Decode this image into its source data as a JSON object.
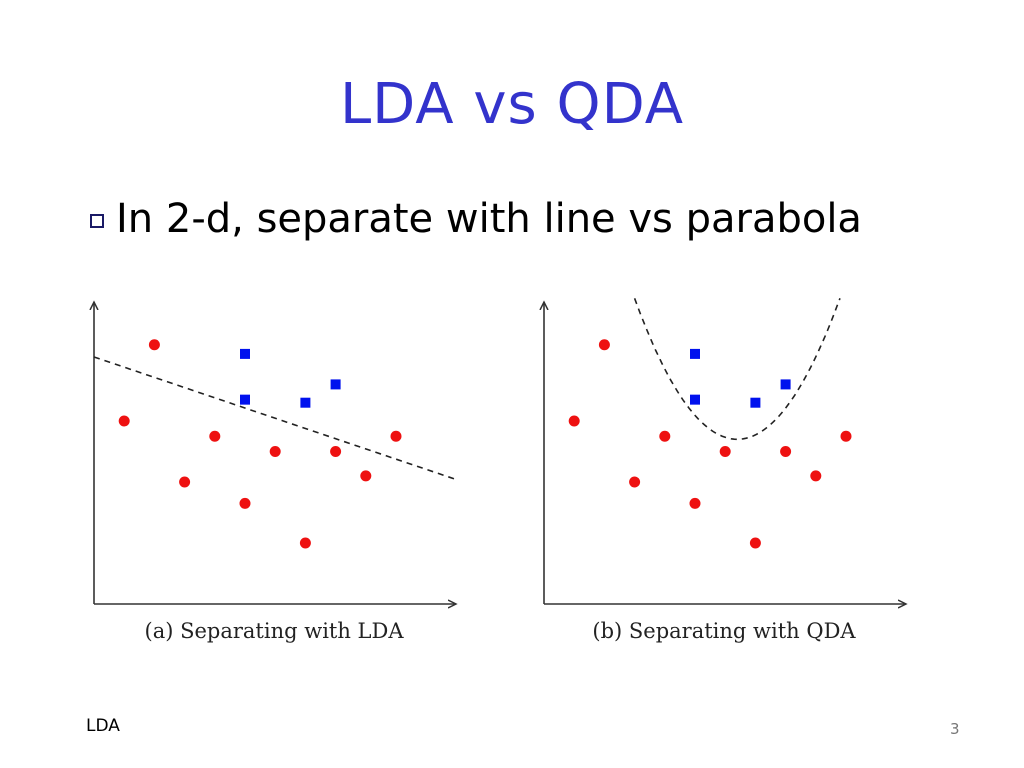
{
  "slide": {
    "title": "LDA vs QDA",
    "bullet": "In 2-d, separate with line vs parabola",
    "footer_left": "LDA",
    "page_number": "3"
  },
  "colors": {
    "title": "#3333cc",
    "red_points": "#ee1111",
    "blue_points": "#0011ee"
  },
  "chart_data": [
    {
      "type": "scatter",
      "caption": "(a) Separating with LDA",
      "xlim": [
        0,
        12
      ],
      "ylim": [
        0,
        10
      ],
      "series": [
        {
          "marker": "circle",
          "color": "#ee1111",
          "points": [
            [
              1,
              6
            ],
            [
              2,
              8.5
            ],
            [
              3,
              4
            ],
            [
              4,
              5.5
            ],
            [
              5,
              3.3
            ],
            [
              6,
              5
            ],
            [
              7,
              2
            ],
            [
              8,
              5
            ],
            [
              9,
              4.2
            ],
            [
              10,
              5.5
            ]
          ]
        },
        {
          "marker": "square",
          "color": "#0011ee",
          "points": [
            [
              5,
              8.2
            ],
            [
              5,
              6.7
            ],
            [
              7,
              6.6
            ],
            [
              8,
              7.2
            ]
          ]
        }
      ],
      "boundary": {
        "kind": "line",
        "style": "dashed",
        "slope": -0.335,
        "intercept": 8.1
      }
    },
    {
      "type": "scatter",
      "caption": "(b) Separating with QDA",
      "xlim": [
        0,
        12
      ],
      "ylim": [
        0,
        10
      ],
      "series": [
        {
          "marker": "circle",
          "color": "#ee1111",
          "points": [
            [
              1,
              6
            ],
            [
              2,
              8.5
            ],
            [
              3,
              4
            ],
            [
              4,
              5.5
            ],
            [
              5,
              3.3
            ],
            [
              6,
              5
            ],
            [
              7,
              2
            ],
            [
              8,
              5
            ],
            [
              9,
              4.2
            ],
            [
              10,
              5.5
            ]
          ]
        },
        {
          "marker": "square",
          "color": "#0011ee",
          "points": [
            [
              5,
              8.2
            ],
            [
              5,
              6.7
            ],
            [
              7,
              6.6
            ],
            [
              8,
              7.2
            ]
          ]
        }
      ],
      "boundary": {
        "kind": "parabola",
        "style": "dashed",
        "vertex": [
          6.4,
          5.4
        ],
        "a": 0.4
      }
    }
  ]
}
